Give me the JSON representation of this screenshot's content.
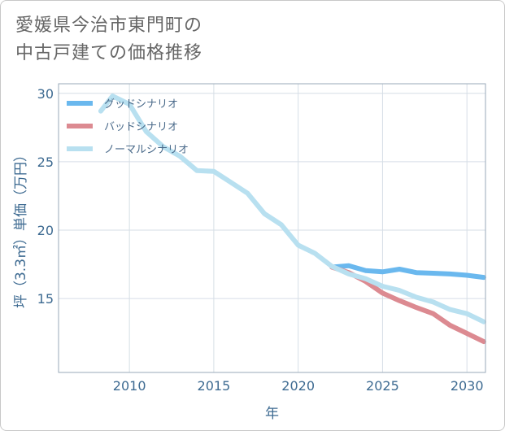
{
  "title_lines": [
    "愛媛県今治市東門町の",
    "中古戸建ての価格推移"
  ],
  "chart_data": {
    "type": "line",
    "xlabel": "年",
    "ylabel": "坪（3.3㎡）単価（万円）",
    "xlim": [
      2005.8,
      2031.1
    ],
    "ylim": [
      9.6,
      30.7
    ],
    "xticks": [
      2010,
      2015,
      2020,
      2025,
      2030
    ],
    "yticks": [
      15,
      20,
      25,
      30
    ],
    "grid": true,
    "legend_position": "top-left",
    "series": [
      {
        "name": "グッドシナリオ",
        "color": "#6ab8ee",
        "x": [
          2022,
          2023,
          2024,
          2025,
          2026,
          2027,
          2028,
          2029,
          2030,
          2031
        ],
        "y": [
          17.3,
          17.4,
          17.05,
          16.95,
          17.15,
          16.9,
          16.85,
          16.8,
          16.7,
          16.55
        ]
      },
      {
        "name": "バッドシナリオ",
        "color": "#dc8a91",
        "x": [
          2022,
          2023,
          2024,
          2025,
          2026,
          2027,
          2028,
          2029,
          2030,
          2031
        ],
        "y": [
          17.3,
          16.9,
          16.25,
          15.4,
          14.85,
          14.35,
          13.9,
          13.05,
          12.45,
          11.85
        ]
      },
      {
        "name": "ノーマルシナリオ",
        "color": "#b8e0f0",
        "x": [
          2008.3,
          2009,
          2010,
          2011,
          2012,
          2013,
          2014,
          2015,
          2016,
          2017,
          2018,
          2019,
          2020,
          2021,
          2022,
          2023,
          2024,
          2025,
          2026,
          2027,
          2028,
          2029,
          2030,
          2031
        ],
        "y": [
          28.7,
          29.8,
          29.2,
          27.2,
          26.1,
          25.4,
          24.35,
          24.3,
          23.5,
          22.7,
          21.2,
          20.4,
          18.9,
          18.3,
          17.35,
          16.8,
          16.45,
          15.9,
          15.6,
          15.1,
          14.75,
          14.2,
          13.9,
          13.3
        ]
      }
    ]
  }
}
